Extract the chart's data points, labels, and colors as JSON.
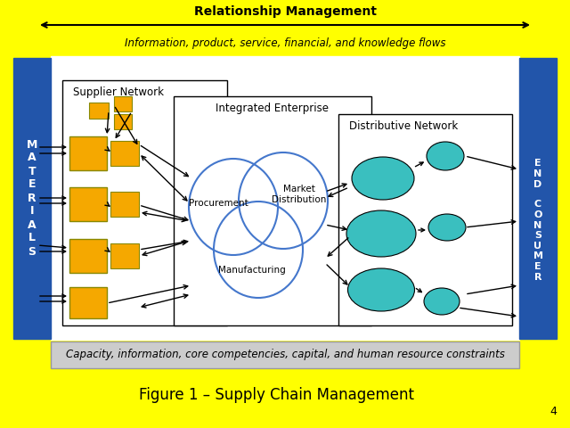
{
  "bg_color": "#FFFF00",
  "title": "Figure 1 – Supply Chain Management",
  "title_fontsize": 12,
  "rel_mgmt_text": "Relationship Management",
  "rel_mgmt_fontsize": 10,
  "info_flow_text": "Information, product, service, financial, and knowledge flows",
  "info_flow_fontsize": 8.5,
  "materials_text": "M\nA\nT\nE\nR\nI\nA\nL\nS",
  "end_line1": "E\nN\nD",
  "end_line2": "C\nO\nN\nS\nU\nM\nE\nR",
  "sidebar_color": "#2255AA",
  "sidebar_text_color": "#FFFFFF",
  "supplier_label": "Supplier Network",
  "integrated_label": "Integrated Enterprise",
  "distributive_label": "Distributive Network",
  "supplier_box_color": "#F5A800",
  "teal_color": "#3ABFBF",
  "venn_color": "#4477CC",
  "capacity_text": "Capacity, information, core competencies, capital, and human resource constraints",
  "capacity_fontsize": 8.5,
  "capacity_bg": "#CCCCCC",
  "page_number": "4"
}
